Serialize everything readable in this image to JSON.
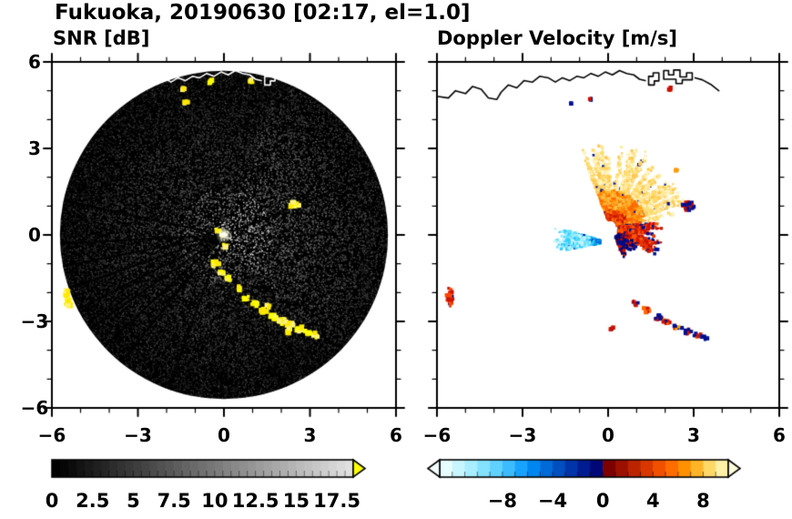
{
  "figure": {
    "title": "Fukuoka, 20190630 [02:17, el=1.0]"
  },
  "panels": {
    "snr": {
      "title": "SNR [dB]"
    },
    "doppler": {
      "title": "Doppler Velocity [m/s]"
    }
  },
  "coastline": {
    "paths": [
      [
        [
          -5.95,
          4.8
        ],
        [
          -5.6,
          4.75
        ],
        [
          -5.35,
          5.0
        ],
        [
          -5.0,
          4.9
        ],
        [
          -4.75,
          5.15
        ],
        [
          -4.45,
          5.05
        ],
        [
          -4.2,
          4.75
        ],
        [
          -3.9,
          4.7
        ],
        [
          -3.75,
          4.95
        ],
        [
          -3.5,
          5.2
        ],
        [
          -3.2,
          5.1
        ],
        [
          -2.95,
          5.35
        ],
        [
          -2.65,
          5.3
        ],
        [
          -2.4,
          5.5
        ],
        [
          -2.1,
          5.45
        ],
        [
          -1.85,
          5.3
        ],
        [
          -1.6,
          5.45
        ],
        [
          -1.35,
          5.35
        ],
        [
          -1.1,
          5.5
        ],
        [
          -0.85,
          5.45
        ],
        [
          -0.6,
          5.6
        ],
        [
          -0.35,
          5.5
        ],
        [
          -0.1,
          5.65
        ],
        [
          0.15,
          5.55
        ],
        [
          0.4,
          5.7
        ],
        [
          0.65,
          5.6
        ],
        [
          0.9,
          5.55
        ],
        [
          1.1,
          5.4
        ],
        [
          1.3,
          5.35
        ]
      ],
      [
        [
          1.42,
          5.2
        ],
        [
          1.42,
          5.5
        ],
        [
          1.58,
          5.5
        ],
        [
          1.58,
          5.62
        ],
        [
          1.78,
          5.62
        ],
        [
          1.78,
          5.34
        ],
        [
          1.62,
          5.34
        ],
        [
          1.62,
          5.2
        ],
        [
          1.42,
          5.2
        ]
      ],
      [
        [
          1.95,
          5.4
        ],
        [
          1.95,
          5.7
        ],
        [
          2.12,
          5.7
        ],
        [
          2.12,
          5.55
        ],
        [
          2.3,
          5.55
        ],
        [
          2.3,
          5.72
        ],
        [
          2.52,
          5.72
        ],
        [
          2.52,
          5.48
        ],
        [
          2.75,
          5.48
        ],
        [
          2.75,
          5.62
        ],
        [
          2.95,
          5.62
        ],
        [
          2.95,
          5.38
        ],
        [
          2.6,
          5.38
        ],
        [
          2.6,
          5.25
        ],
        [
          2.38,
          5.25
        ],
        [
          2.38,
          5.4
        ],
        [
          1.95,
          5.4
        ]
      ],
      [
        [
          3.05,
          5.45
        ],
        [
          3.3,
          5.38
        ],
        [
          3.6,
          5.22
        ],
        [
          3.88,
          5.0
        ]
      ]
    ]
  },
  "chart_data": [
    {
      "type": "heatmap",
      "name": "snr_ppi",
      "title": "SNR [dB]",
      "xlabel": "",
      "ylabel": "",
      "grid": false,
      "xlim": [
        -6,
        6
      ],
      "ylim": [
        -6,
        6
      ],
      "xtick_values": [
        -6,
        -3,
        0,
        3,
        6
      ],
      "xtick_labels": [
        "−6",
        "−3",
        "0",
        "3",
        "6"
      ],
      "ytick_values": [
        6,
        3,
        0,
        -3,
        -6
      ],
      "ytick_labels": [
        "6",
        "3",
        "0",
        "−3",
        "−6"
      ],
      "minor_tick_step": 1,
      "coastline_color": "#ffffff",
      "radar_disk": {
        "center": [
          0,
          0
        ],
        "radius": 5.72,
        "background_color": "#000000"
      },
      "bright_sector_deg": [
        -50,
        70
      ],
      "dark_ray_angles_deg": [
        22,
        168,
        183,
        191,
        199,
        207,
        215,
        223,
        231,
        250
      ],
      "echo_colors": [
        "#ffff00",
        "#ffe800",
        "#fff37a"
      ],
      "center_core_colors": [
        "#ffffff",
        "#ffee55",
        "#cccccc"
      ],
      "echo_features": [
        {
          "x": -0.3,
          "y": -1.0,
          "rx": 0.14,
          "ry": 0.1,
          "n": 10
        },
        {
          "x": -0.12,
          "y": -1.3,
          "rx": 0.12,
          "ry": 0.1,
          "n": 8
        },
        {
          "x": 0.15,
          "y": -1.52,
          "rx": 0.1,
          "ry": 0.08,
          "n": 6
        },
        {
          "x": 0.5,
          "y": -1.85,
          "rx": 0.1,
          "ry": 0.08,
          "n": 5
        },
        {
          "x": 0.78,
          "y": -2.18,
          "rx": 0.14,
          "ry": 0.1,
          "n": 9
        },
        {
          "x": 1.05,
          "y": -2.42,
          "rx": 0.13,
          "ry": 0.1,
          "n": 9
        },
        {
          "x": 1.38,
          "y": -2.63,
          "rx": 0.15,
          "ry": 0.1,
          "n": 10
        },
        {
          "x": 1.55,
          "y": -2.5,
          "rx": 0.1,
          "ry": 0.08,
          "n": 5
        },
        {
          "x": 1.72,
          "y": -2.84,
          "rx": 0.15,
          "ry": 0.11,
          "n": 10
        },
        {
          "x": 2.02,
          "y": -2.99,
          "rx": 0.16,
          "ry": 0.11,
          "n": 11
        },
        {
          "x": 2.32,
          "y": -3.13,
          "rx": 0.16,
          "ry": 0.12,
          "n": 12
        },
        {
          "x": 2.2,
          "y": -3.32,
          "rx": 0.12,
          "ry": 0.1,
          "n": 7
        },
        {
          "x": 2.62,
          "y": -3.27,
          "rx": 0.16,
          "ry": 0.11,
          "n": 11
        },
        {
          "x": 2.92,
          "y": -3.38,
          "rx": 0.15,
          "ry": 0.1,
          "n": 9
        },
        {
          "x": 3.18,
          "y": -3.47,
          "rx": 0.13,
          "ry": 0.1,
          "n": 8
        },
        {
          "x": 2.45,
          "y": 1.05,
          "rx": 0.2,
          "ry": 0.13,
          "n": 14
        },
        {
          "x": -5.45,
          "y": -2.2,
          "rx": 0.13,
          "ry": 0.33,
          "n": 16,
          "s": 5
        },
        {
          "x": -1.45,
          "y": 5.1,
          "rx": 0.1,
          "ry": 0.12,
          "n": 6
        },
        {
          "x": -1.32,
          "y": 4.62,
          "rx": 0.09,
          "ry": 0.1,
          "n": 5
        },
        {
          "x": -0.45,
          "y": 5.32,
          "rx": 0.1,
          "ry": 0.08,
          "n": 5
        },
        {
          "x": 0.95,
          "y": 5.35,
          "rx": 0.1,
          "ry": 0.07,
          "n": 4
        },
        {
          "x": -0.22,
          "y": 0.18,
          "rx": 0.1,
          "ry": 0.08,
          "n": 5
        },
        {
          "x": 0.05,
          "y": -0.35,
          "rx": 0.08,
          "ry": 0.08,
          "n": 4
        }
      ],
      "colorbar": {
        "orientation": "horizontal",
        "range": [
          0,
          18.5
        ],
        "minor_step": 0.5,
        "tick_values": [
          0,
          2.5,
          5,
          7.5,
          10,
          12.5,
          15,
          17.5
        ],
        "tick_labels": [
          "0",
          "2.5",
          "5",
          "7.5",
          "10",
          "12.5",
          "15",
          "17.5"
        ],
        "colormap": "grayscale",
        "start_color": "#000000",
        "end_color": "#e0e0e0",
        "segments": 37,
        "over_arrow_color": "#ffff00"
      }
    },
    {
      "type": "heatmap",
      "name": "doppler_ppi",
      "title": "Doppler Velocity [m/s]",
      "xlabel": "",
      "ylabel": "",
      "grid": false,
      "xlim": [
        -6,
        6
      ],
      "ylim": [
        -6,
        6
      ],
      "xtick_values": [
        -6,
        -3,
        0,
        3,
        6
      ],
      "xtick_labels": [
        "−6",
        "−3",
        "0",
        "3",
        "6"
      ],
      "ytick_values": [
        6,
        3,
        0,
        -3,
        -6
      ],
      "ytick_labels": [],
      "minor_tick_step": 1,
      "background_color": "#ffffff",
      "coastline_color": "#000000",
      "fans": [
        {
          "origin": [
            0.1,
            0.3
          ],
          "angle_range": [
            8,
            112
          ],
          "r_inner": 0.25,
          "r_outer_min": 0.8,
          "r_outer_max": 2.9,
          "rays": 115,
          "dot": 3,
          "navy_fraction": 0.02,
          "bands": [
            {
              "r_max": 0.6,
              "colors": [
                "#e03000",
                "#ff5500",
                "#c81800",
                "#ff7700"
              ]
            },
            {
              "r_max": 1.25,
              "colors": [
                "#ff8800",
                "#ffaa22",
                "#ff6600",
                "#ffc040"
              ]
            },
            {
              "r_max": 9,
              "colors": [
                "#ffd968",
                "#ffe896",
                "#fff3c0",
                "#ffc952"
              ]
            }
          ]
        },
        {
          "origin": [
            0.1,
            0.25
          ],
          "angle_range": [
            -35,
            8
          ],
          "r_inner": 0.3,
          "r_outer_min": 0.5,
          "r_outer_max": 1.9,
          "rays": 45,
          "dot": 3,
          "navy_fraction": 0,
          "bands": [
            {
              "r_max": 9,
              "colors": [
                "#cc1100",
                "#e83800",
                "#001090",
                "#ff5500",
                "#cc1100"
              ]
            }
          ]
        },
        {
          "origin": [
            0.2,
            0.1
          ],
          "angle_range": [
            -70,
            -15
          ],
          "r_inner": 0.2,
          "r_outer_min": 0.3,
          "r_outer_max": 1.0,
          "rays": 40,
          "dot": 3,
          "navy_fraction": 0,
          "bands": [
            {
              "r_max": 9,
              "colors": [
                "#001090",
                "#cc1100",
                "#000870"
              ]
            }
          ]
        },
        {
          "origin": [
            -0.15,
            -0.25
          ],
          "angle_range": [
            163,
            191
          ],
          "r_inner": 0.15,
          "r_outer_min": 0.7,
          "r_outer_max": 1.8,
          "rays": 40,
          "dot": 3,
          "navy_fraction": 0.03,
          "bands": [
            {
              "r_max": 0.5,
              "colors": [
                "#00a0e8",
                "#33ccff",
                "#0060d0"
              ]
            },
            {
              "r_max": 9,
              "colors": [
                "#66e0ff",
                "#99ecff",
                "#c8f6ff",
                "#33ccff"
              ]
            }
          ]
        }
      ],
      "clusters": [
        {
          "x": 2.8,
          "y": 1.0,
          "rx": 0.22,
          "ry": 0.16,
          "n": 22,
          "colors": [
            "#001090",
            "#cc1100",
            "#001090"
          ]
        },
        {
          "x": -5.55,
          "y": -2.1,
          "rx": 0.12,
          "ry": 0.38,
          "n": 26,
          "colors": [
            "#cc1100",
            "#001090",
            "#ff4400"
          ]
        },
        {
          "x": 0.95,
          "y": -2.35,
          "rx": 0.12,
          "ry": 0.1,
          "n": 9,
          "colors": [
            "#001090",
            "#cc1100"
          ]
        },
        {
          "x": 1.35,
          "y": -2.6,
          "rx": 0.13,
          "ry": 0.1,
          "n": 9,
          "colors": [
            "#cc1100",
            "#ff6600",
            "#001090"
          ]
        },
        {
          "x": 1.75,
          "y": -2.85,
          "rx": 0.14,
          "ry": 0.1,
          "n": 10,
          "colors": [
            "#001090",
            "#cc1100"
          ]
        },
        {
          "x": 2.05,
          "y": -3.0,
          "rx": 0.14,
          "ry": 0.1,
          "n": 10,
          "colors": [
            "#cc1100",
            "#001090",
            "#ff6600"
          ]
        },
        {
          "x": 2.45,
          "y": -3.2,
          "rx": 0.16,
          "ry": 0.11,
          "n": 12,
          "colors": [
            "#001090",
            "#cc1100",
            "#ffaa00"
          ]
        },
        {
          "x": 2.8,
          "y": -3.35,
          "rx": 0.15,
          "ry": 0.1,
          "n": 11,
          "colors": [
            "#cc1100",
            "#001090"
          ]
        },
        {
          "x": 3.12,
          "y": -3.46,
          "rx": 0.14,
          "ry": 0.1,
          "n": 10,
          "colors": [
            "#001090",
            "#cc1100",
            "#ff6600"
          ]
        },
        {
          "x": 3.38,
          "y": -3.56,
          "rx": 0.1,
          "ry": 0.08,
          "n": 6,
          "colors": [
            "#001090"
          ]
        },
        {
          "x": 0.15,
          "y": -3.25,
          "rx": 0.07,
          "ry": 0.06,
          "n": 4,
          "colors": [
            "#001090",
            "#cc1100"
          ]
        },
        {
          "x": -0.6,
          "y": 4.7,
          "rx": 0.07,
          "ry": 0.08,
          "n": 5,
          "colors": [
            "#cc1100",
            "#001090"
          ]
        },
        {
          "x": -1.3,
          "y": 4.55,
          "rx": 0.06,
          "ry": 0.06,
          "n": 3,
          "colors": [
            "#001090"
          ]
        },
        {
          "x": 2.2,
          "y": 5.05,
          "rx": 0.08,
          "ry": 0.06,
          "n": 5,
          "colors": [
            "#cc1100"
          ]
        },
        {
          "x": 2.35,
          "y": 2.25,
          "rx": 0.08,
          "ry": 0.06,
          "n": 4,
          "colors": [
            "#ffcc44",
            "#ff9900"
          ]
        }
      ],
      "colorbar": {
        "orientation": "horizontal",
        "range": [
          -13,
          10
        ],
        "minor_step": 1,
        "tick_values": [
          -8,
          -4,
          0,
          4,
          8
        ],
        "tick_labels": [
          "−8",
          "−4",
          "0",
          "4",
          "8"
        ],
        "colormap": "doppler",
        "negative_colors": [
          "#e8fdff",
          "#c8f6ff",
          "#a8eeff",
          "#84e2ff",
          "#60d2ff",
          "#3cbcff",
          "#18a2ff",
          "#0086f0",
          "#006ad8",
          "#004ec0",
          "#0034a8",
          "#001c90",
          "#000878"
        ],
        "positive_colors": [
          "#7c0000",
          "#9c1000",
          "#bc2400",
          "#d83800",
          "#f05000",
          "#ff6c00",
          "#ff9000",
          "#ffb428",
          "#ffd868",
          "#fff0a8"
        ],
        "under_arrow_color": "#f4feff",
        "over_arrow_color": "#fffcdc"
      }
    }
  ]
}
